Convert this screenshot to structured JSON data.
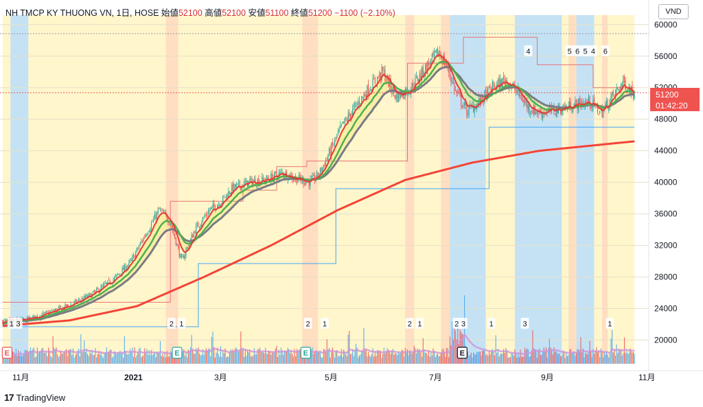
{
  "header": {
    "symbol": "NH TMCP KY THUONG VN, 1日, HOSE",
    "open_label": "始値",
    "open_value": "52100",
    "high_label": "高値",
    "high_value": "52100",
    "low_label": "安値",
    "low_value": "51100",
    "close_label": "終値",
    "close_value": "51200",
    "change": "−1100 (−2.10%)"
  },
  "currency": "VND",
  "last_price": {
    "price": "51200",
    "countdown": "01:42:20"
  },
  "brand": "TradingView",
  "colors": {
    "up": "#26a69a",
    "down": "#ef5350",
    "ma_fast": "#e53935",
    "ma_mid": "#4caf50",
    "ma_slow": "#787b86",
    "ma_long": "#f44336",
    "band_fill": "#f5e98c",
    "blue_zone": "#bbdefb",
    "yellow_zone": "#fff5c2",
    "orange_zone": "#ffd9c0"
  },
  "chart_data": {
    "type": "candlestick",
    "y_axis": {
      "ticks": [
        20000,
        24000,
        28000,
        32000,
        36000,
        40000,
        44000,
        48000,
        52000,
        56000,
        60000
      ],
      "range": [
        17000,
        61200
      ]
    },
    "x_axis": {
      "ticks": [
        "11月",
        "2021",
        "3月",
        "5月",
        "7月",
        "9月",
        "11月"
      ]
    },
    "price_curve": [
      [
        0,
        22400
      ],
      [
        20,
        22500
      ],
      [
        40,
        23400
      ],
      [
        60,
        24400
      ],
      [
        80,
        25800
      ],
      [
        100,
        27800
      ],
      [
        115,
        30000
      ],
      [
        128,
        33500
      ],
      [
        140,
        36500
      ],
      [
        150,
        35000
      ],
      [
        160,
        30000
      ],
      [
        172,
        34000
      ],
      [
        185,
        36500
      ],
      [
        195,
        37500
      ],
      [
        205,
        39200
      ],
      [
        220,
        40000
      ],
      [
        235,
        40300
      ],
      [
        250,
        41200
      ],
      [
        262,
        40500
      ],
      [
        275,
        40000
      ],
      [
        283,
        41000
      ],
      [
        293,
        44000
      ],
      [
        303,
        47000
      ],
      [
        315,
        49500
      ],
      [
        328,
        52000
      ],
      [
        340,
        54000
      ],
      [
        352,
        50800
      ],
      [
        365,
        52000
      ],
      [
        378,
        54500
      ],
      [
        390,
        56500
      ],
      [
        398,
        54500
      ],
      [
        405,
        51500
      ],
      [
        415,
        49000
      ],
      [
        425,
        50000
      ],
      [
        438,
        52000
      ],
      [
        450,
        53000
      ],
      [
        460,
        51500
      ],
      [
        470,
        49500
      ],
      [
        480,
        48800
      ],
      [
        495,
        49200
      ],
      [
        510,
        49800
      ],
      [
        525,
        50200
      ],
      [
        535,
        48800
      ],
      [
        545,
        50800
      ],
      [
        555,
        52700
      ],
      [
        565,
        51200
      ]
    ],
    "ma_long": [
      [
        0,
        21800
      ],
      [
        60,
        22500
      ],
      [
        120,
        24300
      ],
      [
        180,
        28000
      ],
      [
        240,
        32000
      ],
      [
        300,
        36500
      ],
      [
        360,
        40300
      ],
      [
        420,
        42500
      ],
      [
        480,
        44000
      ],
      [
        565,
        45200
      ]
    ],
    "volume_range": [
      0,
      3.2
    ],
    "overlay_labels": [
      {
        "text": "1",
        "i": 8
      },
      {
        "text": "3",
        "i": 14
      },
      {
        "text": "2",
        "i": 151
      },
      {
        "text": "1",
        "i": 160
      },
      {
        "text": "2",
        "i": 273
      },
      {
        "text": "1",
        "i": 288
      },
      {
        "text": "2",
        "i": 364
      },
      {
        "text": "1",
        "i": 373
      },
      {
        "text": "2",
        "i": 406
      },
      {
        "text": "3",
        "i": 412
      },
      {
        "text": "1",
        "i": 437
      },
      {
        "text": "3",
        "i": 467
      },
      {
        "text": "1",
        "i": 543
      }
    ],
    "top_labels": [
      {
        "text": "4",
        "i": 470,
        "y": 56600
      },
      {
        "text": "5",
        "i": 507,
        "y": 56600
      },
      {
        "text": "6",
        "i": 514,
        "y": 56600
      },
      {
        "text": "5",
        "i": 521,
        "y": 56600
      },
      {
        "text": "4",
        "i": 528,
        "y": 56600
      },
      {
        "text": "6",
        "i": 539,
        "y": 56600
      }
    ],
    "earnings_marks": [
      {
        "text": "E",
        "i": 4
      },
      {
        "text": "E",
        "i": 156
      },
      {
        "text": "E",
        "i": 271
      },
      {
        "text": "E",
        "i": 411
      }
    ],
    "upper_steps": [
      [
        0,
        24800
      ],
      [
        150,
        24800
      ],
      [
        150,
        37600
      ],
      [
        215,
        37600
      ],
      [
        215,
        39000
      ],
      [
        245,
        39000
      ],
      [
        245,
        42000
      ],
      [
        272,
        42000
      ],
      [
        272,
        42700
      ],
      [
        362,
        42700
      ],
      [
        362,
        55100
      ],
      [
        412,
        55100
      ],
      [
        412,
        58400
      ],
      [
        478,
        58400
      ],
      [
        478,
        54900
      ],
      [
        528,
        54900
      ],
      [
        528,
        52000
      ],
      [
        565,
        52000
      ]
    ],
    "lower_steps": [
      [
        0,
        21700
      ],
      [
        175,
        21700
      ],
      [
        175,
        29700
      ],
      [
        298,
        29700
      ],
      [
        298,
        39200
      ],
      [
        435,
        39200
      ],
      [
        435,
        47000
      ],
      [
        565,
        47000
      ]
    ]
  }
}
